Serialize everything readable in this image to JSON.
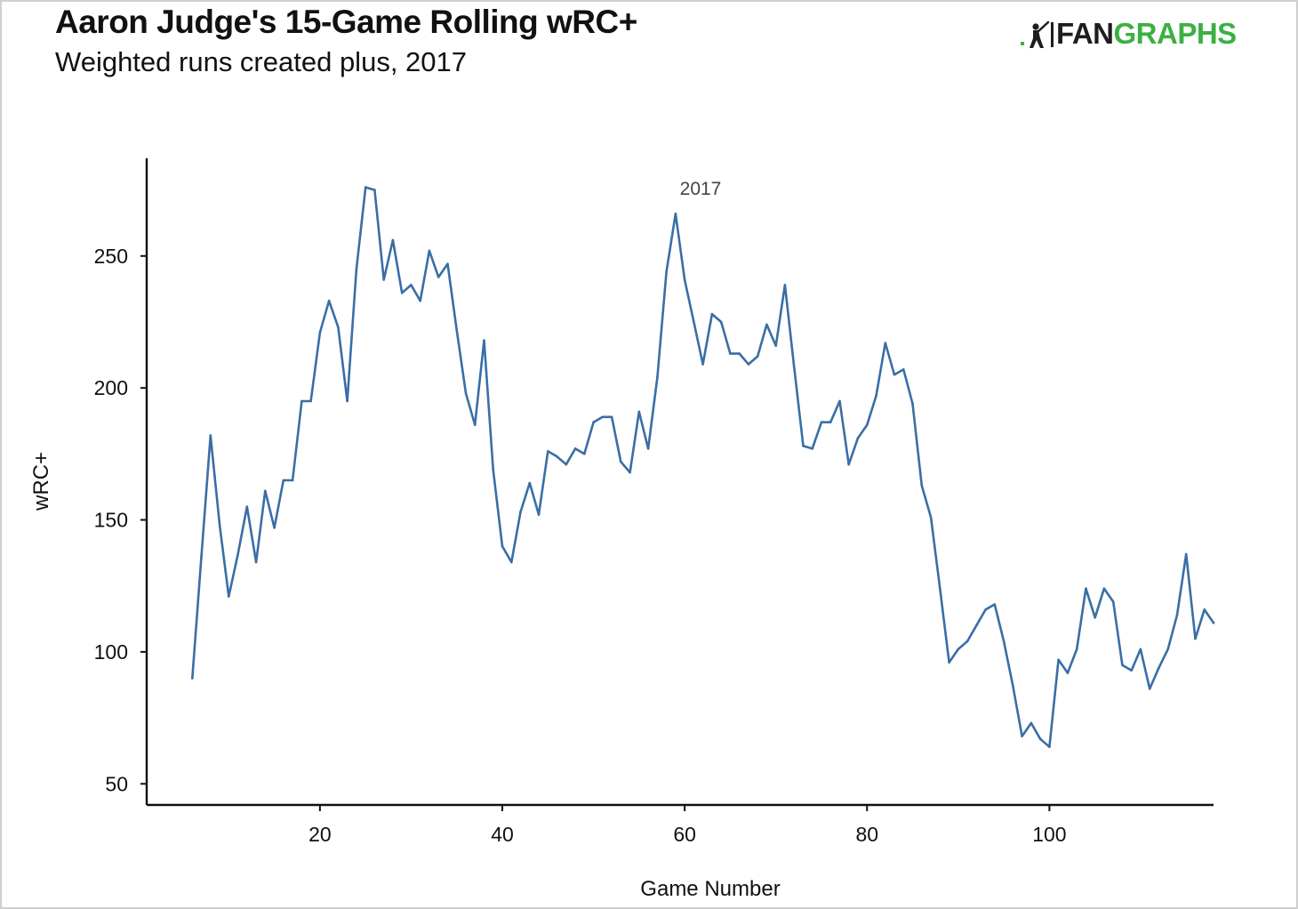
{
  "header": {
    "title": "Aaron Judge's 15-Game Rolling wRC+",
    "subtitle": "Weighted runs created plus, 2017"
  },
  "logo": {
    "text_dark": "FAN",
    "text_green": "GRAPHS",
    "icon": "batter-icon",
    "green": "#3cb043"
  },
  "chart_data": {
    "type": "line",
    "title": "Aaron Judge's 15-Game Rolling wRC+",
    "subtitle": "Weighted runs created plus, 2017",
    "xlabel": "Game Number",
    "ylabel": "wRC+",
    "annotation": "2017",
    "xlim": [
      1,
      118
    ],
    "ylim": [
      42,
      287
    ],
    "xticks": [
      20,
      40,
      60,
      80,
      100
    ],
    "yticks": [
      50,
      100,
      150,
      200,
      250
    ],
    "grid": false,
    "legend": "none",
    "line_color": "#3a6ea5",
    "series": [
      {
        "x": [
          6,
          7,
          8,
          9,
          10,
          11,
          12,
          13,
          14,
          15,
          16,
          17,
          18,
          19,
          20,
          21,
          22,
          23,
          24,
          25,
          26,
          27,
          28,
          29,
          30,
          31,
          32,
          33,
          34,
          35,
          36,
          37,
          38,
          39,
          40,
          41,
          42,
          43,
          44,
          45,
          46,
          47,
          48,
          49,
          50,
          51,
          52,
          53,
          54,
          55,
          56,
          57,
          58,
          59,
          60,
          61,
          62,
          63,
          64,
          65,
          66,
          67,
          68,
          69,
          70,
          71,
          72,
          73,
          74,
          75,
          76,
          77,
          78,
          79,
          80,
          81,
          82,
          83,
          84,
          85,
          86,
          87,
          88,
          89,
          90,
          91,
          92,
          93,
          94,
          95,
          96,
          97,
          98,
          99,
          100,
          101,
          102,
          103,
          104,
          105,
          106,
          107,
          108,
          109,
          110,
          111,
          112,
          113,
          114,
          115,
          116,
          117,
          118
        ],
        "values": [
          90,
          136,
          182,
          148,
          121,
          137,
          155,
          134,
          161,
          147,
          165,
          165,
          195,
          195,
          221,
          233,
          223,
          195,
          245,
          276,
          275,
          241,
          256,
          236,
          239,
          233,
          252,
          242,
          247,
          222,
          198,
          186,
          218,
          169,
          140,
          134,
          153,
          164,
          152,
          176,
          174,
          171,
          177,
          175,
          187,
          189,
          189,
          172,
          168,
          191,
          177,
          204,
          244,
          266,
          241,
          225,
          209,
          228,
          225,
          213,
          213,
          209,
          212,
          224,
          216,
          239,
          208,
          178,
          177,
          187,
          187,
          195,
          171,
          181,
          186,
          197,
          217,
          205,
          207,
          194,
          163,
          151,
          124,
          96,
          101,
          104,
          110,
          116,
          118,
          104,
          87,
          68,
          73,
          67,
          64,
          97,
          92,
          101,
          124,
          113,
          124,
          119,
          95,
          93,
          101,
          86,
          94,
          101,
          114,
          137,
          105,
          116,
          111
        ]
      }
    ]
  }
}
